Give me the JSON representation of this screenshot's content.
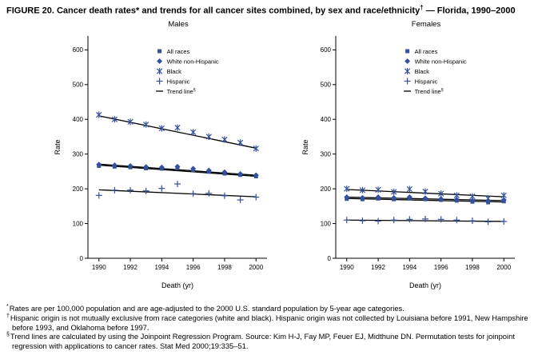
{
  "figure": {
    "title": "FIGURE 20. Cancer death rates* and trends for all cancer sites combined, by sex and race/ethnicity",
    "title_sup": "†",
    "title_suffix": " — Florida, 1990–2000"
  },
  "colors": {
    "marker": "#33519f",
    "trend": "#000000",
    "text": "#000000",
    "background": "#ffffff"
  },
  "chart_data": [
    {
      "type": "scatter",
      "title": "Males",
      "xlabel": "Death (yr)",
      "ylabel": "Rate",
      "x": [
        1990,
        1991,
        1992,
        1993,
        1994,
        1995,
        1996,
        1997,
        1998,
        1999,
        2000
      ],
      "xticks": [
        1990,
        1992,
        1994,
        1996,
        1998,
        2000
      ],
      "ylim": [
        0,
        640
      ],
      "yticks": [
        0,
        100,
        200,
        300,
        400,
        500,
        600
      ],
      "grid": false,
      "legend_position": "upper middle",
      "series": [
        {
          "name": "All races",
          "marker": "square",
          "values": [
            266,
            264,
            262,
            259,
            258,
            260,
            254,
            249,
            244,
            240,
            236
          ]
        },
        {
          "name": "White non-Hispanic",
          "marker": "diamond",
          "values": [
            270,
            268,
            266,
            263,
            262,
            264,
            258,
            253,
            248,
            243,
            239
          ]
        },
        {
          "name": "Black",
          "marker": "asterisk",
          "values": [
            413,
            400,
            393,
            385,
            374,
            376,
            363,
            350,
            342,
            333,
            316
          ]
        },
        {
          "name": "Hispanic",
          "marker": "plus",
          "values": [
            181,
            196,
            196,
            194,
            201,
            214,
            186,
            187,
            180,
            168,
            176
          ]
        }
      ],
      "trend_lines": [
        {
          "series": "All races",
          "start": 268,
          "end": 236
        },
        {
          "series": "White non-Hispanic",
          "start": 271,
          "end": 239
        },
        {
          "series": "Black",
          "start": 410,
          "end": 317
        },
        {
          "series": "Hispanic",
          "start": 197,
          "end": 177
        }
      ],
      "trend_label": "Trend line",
      "trend_label_sup": "§"
    },
    {
      "type": "scatter",
      "title": "Females",
      "xlabel": "Death (yr)",
      "ylabel": "Rate",
      "x": [
        1990,
        1991,
        1992,
        1993,
        1994,
        1995,
        1996,
        1997,
        1998,
        1999,
        2000
      ],
      "xticks": [
        1990,
        1992,
        1994,
        1996,
        1998,
        2000
      ],
      "ylim": [
        0,
        640
      ],
      "yticks": [
        0,
        100,
        200,
        300,
        400,
        500,
        600
      ],
      "grid": false,
      "legend_position": "upper middle",
      "series": [
        {
          "name": "All races",
          "marker": "square",
          "values": [
            171,
            170,
            172,
            170,
            172,
            170,
            168,
            166,
            163,
            161,
            164
          ]
        },
        {
          "name": "White non-Hispanic",
          "marker": "diamond",
          "values": [
            176,
            174,
            176,
            174,
            176,
            173,
            171,
            169,
            166,
            164,
            168
          ]
        },
        {
          "name": "Black",
          "marker": "asterisk",
          "values": [
            200,
            196,
            197,
            191,
            199,
            192,
            186,
            181,
            178,
            172,
            181
          ]
        },
        {
          "name": "Hispanic",
          "marker": "plus",
          "values": [
            110,
            108,
            107,
            110,
            112,
            113,
            112,
            110,
            108,
            105,
            106
          ]
        }
      ],
      "trend_lines": [
        {
          "series": "All races",
          "start": 172,
          "end": 162
        },
        {
          "series": "White non-Hispanic",
          "start": 176,
          "end": 166
        },
        {
          "series": "Black",
          "start": 198,
          "end": 177
        },
        {
          "series": "Hispanic",
          "start": 110,
          "end": 106
        }
      ],
      "trend_label": "Trend line",
      "trend_label_sup": "§"
    }
  ],
  "footnotes": [
    {
      "marker": "*",
      "text": "Rates are per 100,000 population and are age-adjusted to the 2000 U.S. standard population by 5-year age categories."
    },
    {
      "marker": "†",
      "text": "Hispanic origin is not mutually exclusive from race categories (white and black). Hispanic origin was not collected by Louisiana before 1991, New Hampshire before 1993, and Oklahoma before 1997."
    },
    {
      "marker": "§",
      "text": "Trend lines are calculated by using the Joinpoint Regression Program. Source: Kim H-J, Fay MP, Feuer EJ, Midthune DN. Permutation tests for joinpoint regression with applications to cancer rates. Stat Med 2000;19:335–51."
    }
  ]
}
